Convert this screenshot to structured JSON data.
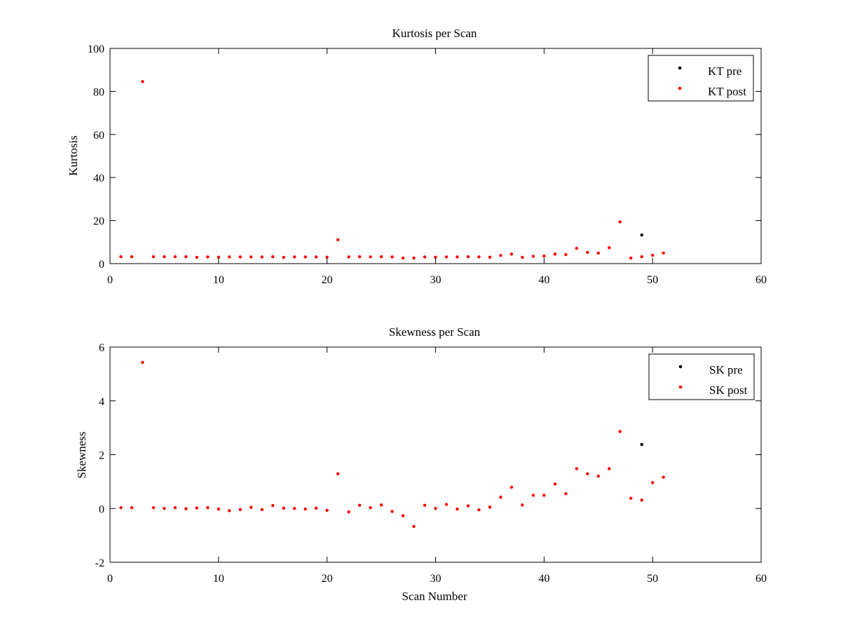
{
  "chart_data": [
    {
      "type": "scatter",
      "title": "Kurtosis per Scan",
      "xlabel": "",
      "ylabel": "Kurtosis",
      "xlim": [
        0,
        60
      ],
      "ylim": [
        0,
        100
      ],
      "xticks": [
        0,
        10,
        20,
        30,
        40,
        50,
        60
      ],
      "yticks": [
        0,
        20,
        40,
        60,
        80,
        100
      ],
      "grid": false,
      "legend_position": "top-right",
      "series": [
        {
          "name": "KT pre",
          "color": "#000000",
          "points": [
            [
              49,
              13.3
            ]
          ]
        },
        {
          "name": "KT post",
          "color": "#ff0000",
          "points": [
            [
              1,
              3.2
            ],
            [
              2,
              3.2
            ],
            [
              3,
              84.6
            ],
            [
              4,
              3.2
            ],
            [
              5,
              3.2
            ],
            [
              6,
              3.2
            ],
            [
              7,
              3.2
            ],
            [
              8,
              2.9
            ],
            [
              9,
              3.1
            ],
            [
              10,
              3.0
            ],
            [
              11,
              3.1
            ],
            [
              12,
              3.1
            ],
            [
              13,
              3.1
            ],
            [
              14,
              3.1
            ],
            [
              15,
              3.2
            ],
            [
              16,
              2.9
            ],
            [
              17,
              3.1
            ],
            [
              18,
              3.1
            ],
            [
              19,
              3.1
            ],
            [
              20,
              3.0
            ],
            [
              21,
              11.1
            ],
            [
              22,
              3.1
            ],
            [
              23,
              3.2
            ],
            [
              24,
              3.1
            ],
            [
              25,
              3.2
            ],
            [
              26,
              3.1
            ],
            [
              27,
              2.6
            ],
            [
              28,
              2.6
            ],
            [
              29,
              3.1
            ],
            [
              30,
              3.0
            ],
            [
              31,
              3.1
            ],
            [
              32,
              3.1
            ],
            [
              33,
              3.2
            ],
            [
              34,
              3.1
            ],
            [
              35,
              3.0
            ],
            [
              36,
              3.8
            ],
            [
              37,
              4.4
            ],
            [
              38,
              2.9
            ],
            [
              39,
              3.4
            ],
            [
              40,
              3.5
            ],
            [
              41,
              4.4
            ],
            [
              42,
              4.2
            ],
            [
              43,
              7.1
            ],
            [
              44,
              5.2
            ],
            [
              45,
              4.9
            ],
            [
              46,
              7.4
            ],
            [
              47,
              19.4
            ],
            [
              48,
              2.6
            ],
            [
              49,
              3.2
            ],
            [
              50,
              3.9
            ],
            [
              51,
              4.9
            ]
          ]
        }
      ]
    },
    {
      "type": "scatter",
      "title": "Skewness per Scan",
      "xlabel": "Scan Number",
      "ylabel": "Skewness",
      "xlim": [
        0,
        60
      ],
      "ylim": [
        -2,
        6
      ],
      "xticks": [
        0,
        10,
        20,
        30,
        40,
        50,
        60
      ],
      "yticks": [
        -2,
        0,
        2,
        4,
        6
      ],
      "grid": false,
      "legend_position": "top-right",
      "series": [
        {
          "name": "SK pre",
          "color": "#000000",
          "points": [
            [
              49,
              2.38
            ]
          ]
        },
        {
          "name": "SK post",
          "color": "#ff0000",
          "points": [
            [
              1,
              0.03
            ],
            [
              2,
              0.03
            ],
            [
              3,
              5.43
            ],
            [
              4,
              0.03
            ],
            [
              5,
              0.0
            ],
            [
              6,
              0.03
            ],
            [
              7,
              -0.01
            ],
            [
              8,
              0.02
            ],
            [
              9,
              0.03
            ],
            [
              10,
              -0.02
            ],
            [
              11,
              -0.08
            ],
            [
              12,
              -0.04
            ],
            [
              13,
              0.04
            ],
            [
              14,
              -0.04
            ],
            [
              15,
              0.11
            ],
            [
              16,
              0.01
            ],
            [
              17,
              0.0
            ],
            [
              18,
              -0.02
            ],
            [
              19,
              0.01
            ],
            [
              20,
              -0.07
            ],
            [
              21,
              1.29
            ],
            [
              22,
              -0.13
            ],
            [
              23,
              0.12
            ],
            [
              24,
              0.03
            ],
            [
              25,
              0.13
            ],
            [
              26,
              -0.11
            ],
            [
              27,
              -0.27
            ],
            [
              28,
              -0.67
            ],
            [
              29,
              0.12
            ],
            [
              30,
              0.0
            ],
            [
              31,
              0.15
            ],
            [
              32,
              -0.02
            ],
            [
              33,
              0.1
            ],
            [
              34,
              -0.05
            ],
            [
              35,
              0.05
            ],
            [
              36,
              0.42
            ],
            [
              37,
              0.79
            ],
            [
              38,
              0.13
            ],
            [
              39,
              0.49
            ],
            [
              40,
              0.49
            ],
            [
              41,
              0.91
            ],
            [
              42,
              0.55
            ],
            [
              43,
              1.48
            ],
            [
              44,
              1.29
            ],
            [
              45,
              1.2
            ],
            [
              46,
              1.48
            ],
            [
              47,
              2.86
            ],
            [
              48,
              0.38
            ],
            [
              49,
              0.31
            ],
            [
              50,
              0.96
            ],
            [
              51,
              1.16
            ]
          ]
        }
      ]
    }
  ]
}
